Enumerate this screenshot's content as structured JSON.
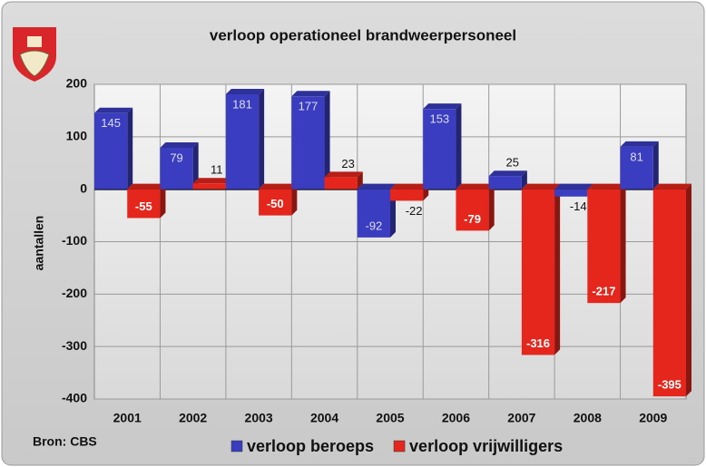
{
  "chart_data": {
    "type": "bar",
    "title": "verloop operationeel brandweerpersoneel",
    "y_label": "aantallen",
    "source": "Bron: CBS",
    "categories": [
      "2001",
      "2002",
      "2003",
      "2004",
      "2005",
      "2006",
      "2007",
      "2008",
      "2009"
    ],
    "series": [
      {
        "name": "verloop beroeps",
        "color": "#3a3dbf",
        "values": [
          145,
          79,
          181,
          177,
          -92,
          153,
          25,
          -14,
          81
        ]
      },
      {
        "name": "verloop vrijwilligers",
        "color": "#e5261c",
        "values": [
          -55,
          11,
          -50,
          23,
          -22,
          -79,
          -316,
          -217,
          -395
        ]
      }
    ],
    "ylim": [
      -400,
      200
    ],
    "yticks": [
      -400,
      -300,
      -200,
      -100,
      0,
      100,
      200
    ],
    "grid": true,
    "legend": "bottom"
  }
}
